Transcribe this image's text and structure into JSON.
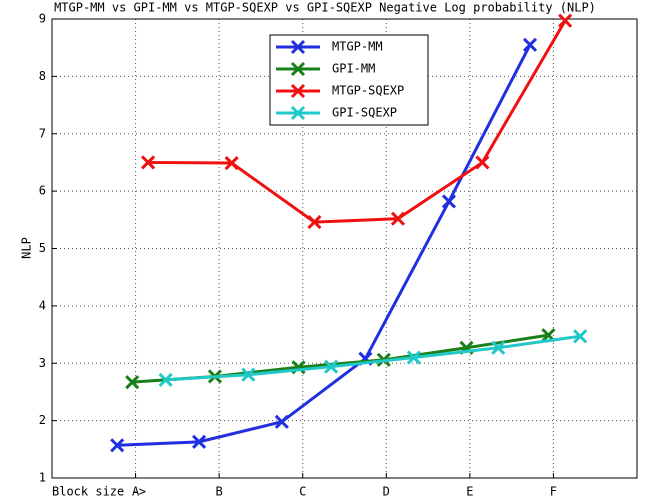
{
  "chart_data": {
    "type": "line",
    "title": "MTGP-MM vs GPI-MM vs MTGP-SQEXP vs GPI-SQEXP Negative Log probability (NLP)",
    "y_label": "NLP",
    "xlim": [
      0,
      7
    ],
    "xticks": [
      {
        "value": 0,
        "label": "Block size ->"
      },
      {
        "value": 1,
        "label": "A"
      },
      {
        "value": 2,
        "label": "B"
      },
      {
        "value": 3,
        "label": "C"
      },
      {
        "value": 4,
        "label": "D"
      },
      {
        "value": 5,
        "label": "E"
      },
      {
        "value": 6,
        "label": "F"
      }
    ],
    "ylim": [
      1,
      9
    ],
    "yticks": [
      1,
      2,
      3,
      4,
      5,
      6,
      7,
      8,
      9
    ],
    "grid": true,
    "legend": "upper center",
    "series": [
      {
        "name": "MTGP-MM",
        "color": "#2030e0",
        "x": [
          0.78,
          1.76,
          2.75,
          3.75,
          4.75,
          5.72
        ],
        "values": [
          1.57,
          1.63,
          1.98,
          3.08,
          5.82,
          8.55
        ]
      },
      {
        "name": "GPI-MM",
        "color": "#1a801a",
        "x": [
          0.96,
          1.95,
          2.95,
          3.97,
          4.96,
          5.94
        ],
        "values": [
          2.67,
          2.77,
          2.93,
          3.06,
          3.27,
          3.49
        ]
      },
      {
        "name": "MTGP-SQEXP",
        "color": "#f01010",
        "x": [
          1.15,
          2.15,
          3.14,
          4.14,
          5.15,
          6.14
        ],
        "values": [
          6.5,
          6.49,
          5.46,
          5.52,
          6.5,
          8.97
        ]
      },
      {
        "name": "GPI-SQEXP",
        "color": "#20c8c8",
        "x": [
          1.36,
          2.35,
          3.34,
          4.33,
          5.34,
          6.32
        ],
        "values": [
          2.71,
          2.8,
          2.94,
          3.1,
          3.27,
          3.47
        ]
      }
    ]
  }
}
